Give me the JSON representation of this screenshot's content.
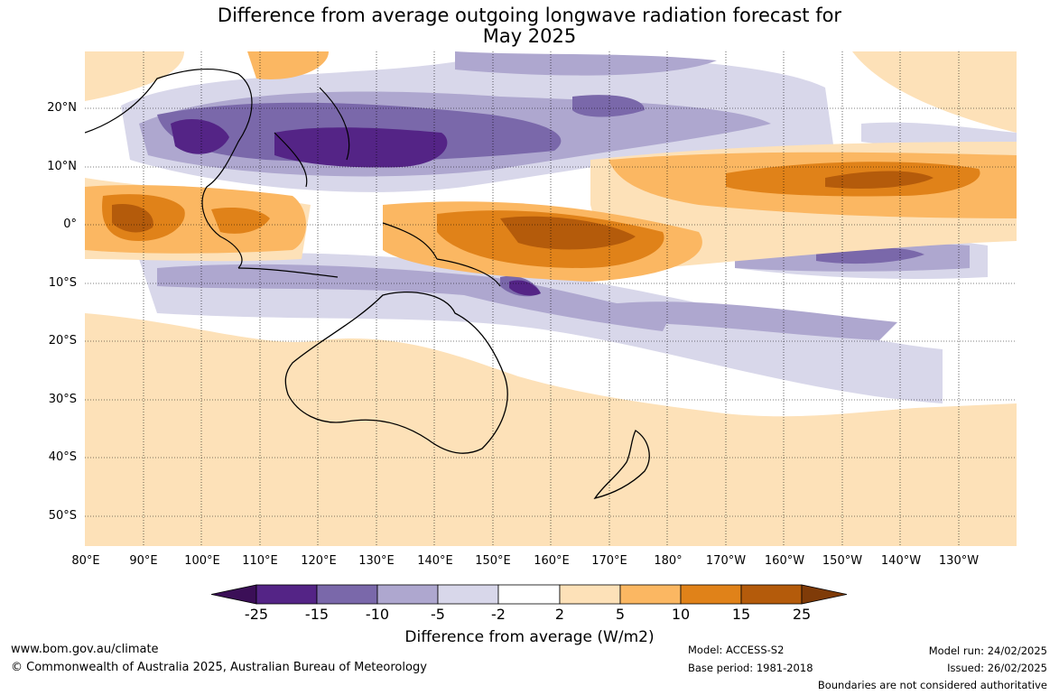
{
  "title": {
    "line1": "Difference from average outgoing longwave radiation forecast for",
    "line2": "May 2025"
  },
  "map": {
    "lat_labels": [
      "20°N",
      "10°N",
      "0°",
      "10°S",
      "20°S",
      "30°S",
      "40°S",
      "50°S"
    ],
    "lon_labels": [
      "80°E",
      "90°E",
      "100°E",
      "110°E",
      "120°E",
      "130°E",
      "140°E",
      "150°E",
      "160°E",
      "170°E",
      "180°",
      "170°W",
      "160°W",
      "150°W",
      "140°W",
      "130°W"
    ],
    "grid": "dotted"
  },
  "legend": {
    "title": "Difference from average (W/m2)",
    "ticks": [
      "-25",
      "-15",
      "-10",
      "-5",
      "-2",
      "2",
      "5",
      "10",
      "15",
      "25"
    ],
    "colors": [
      "#3b0f57",
      "#542486",
      "#7a68aa",
      "#aea7cf",
      "#d8d7ea",
      "#ffffff",
      "#fde1b8",
      "#fbb762",
      "#e08219",
      "#b45b0b",
      "#7f3b08"
    ]
  },
  "footer": {
    "website": "www.bom.gov.au/climate",
    "copyright": "© Commonwealth of Australia 2025, Australian Bureau of Meteorology",
    "model": "Model: ACCESS-S2",
    "base_period": "Base period: 1981-2018",
    "model_run": "Model run: 24/02/2025",
    "issued": "Issued: 26/02/2025",
    "disclaimer": "Boundaries are not considered authoritative"
  }
}
